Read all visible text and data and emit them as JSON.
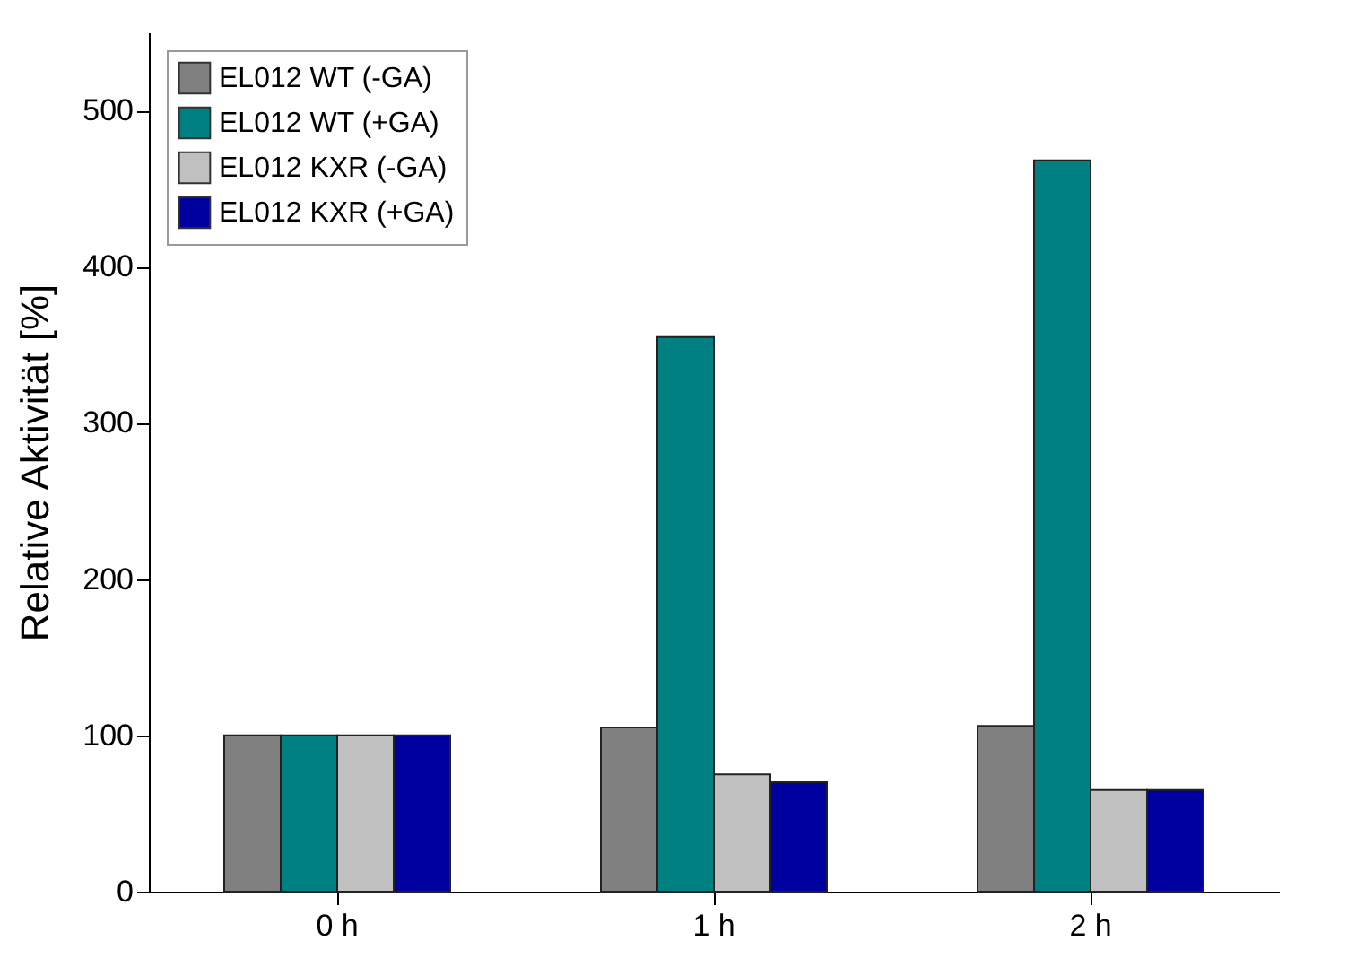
{
  "chart_data": {
    "type": "bar",
    "ylabel": "Relative Aktivität [%]",
    "categories": [
      "0 h",
      "1 h",
      "2 h"
    ],
    "series": [
      {
        "name": "EL012 WT (-GA)",
        "color": "#808080",
        "values": [
          100,
          105,
          106
        ]
      },
      {
        "name": "EL012 WT (+GA)",
        "color": "#008080",
        "values": [
          100,
          355,
          468
        ]
      },
      {
        "name": "EL012 KXR (-GA)",
        "color": "#c0c0c0",
        "values": [
          100,
          75,
          65
        ]
      },
      {
        "name": "EL012 KXR (+GA)",
        "color": "#0000a0",
        "values": [
          100,
          70,
          65
        ]
      }
    ],
    "ylim": [
      0,
      550
    ],
    "yticks": [
      0,
      100,
      200,
      300,
      400,
      500
    ],
    "grid": false,
    "legend": "top left"
  }
}
